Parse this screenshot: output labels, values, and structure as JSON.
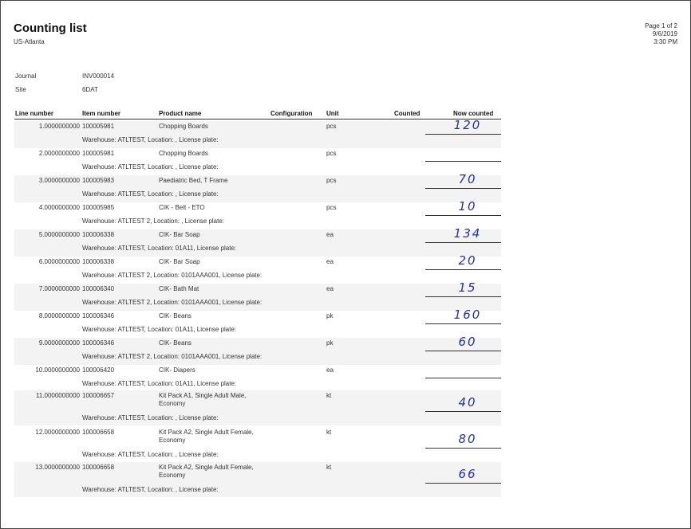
{
  "header": {
    "title": "Counting list",
    "subtitle": "US-Atlanta",
    "page": "Page 1 of 2",
    "date": "9/6/2019",
    "time": "3:30 PM"
  },
  "meta": {
    "journal_label": "Journal",
    "journal_value": "INV000014",
    "site_label": "Site",
    "site_value": "6DAT"
  },
  "columns": {
    "line_number": "Line number",
    "item_number": "Item number",
    "product_name": "Product name",
    "configuration": "Configuration",
    "unit": "Unit",
    "counted": "Counted",
    "now_counted": "Now counted"
  },
  "rows": [
    {
      "line": "1.0000000000",
      "item": "100005981",
      "product": "Chopping Boards",
      "unit": "pcs",
      "warehouse": "Warehouse: ATLTEST, Location: , License plate:",
      "handwritten": "120"
    },
    {
      "line": "2.0000000000",
      "item": "100005981",
      "product": "Chopping Boards",
      "unit": "pcs",
      "warehouse": "Warehouse: ATLTEST, Location: , License plate:",
      "handwritten": ""
    },
    {
      "line": "3.0000000000",
      "item": "100005983",
      "product": "Paediatric Bed, T Frame",
      "unit": "pcs",
      "warehouse": "Warehouse: ATLTEST, Location: , License plate:",
      "handwritten": "70"
    },
    {
      "line": "4.0000000000",
      "item": "100005985",
      "product": "CIK - Belt - ETO",
      "unit": "pcs",
      "warehouse": "Warehouse: ATLTEST 2, Location: , License plate:",
      "handwritten": "10"
    },
    {
      "line": "5.0000000000",
      "item": "100006338",
      "product": "CIK- Bar Soap",
      "unit": "ea",
      "warehouse": "Warehouse: ATLTEST, Location: 01A11, License plate:",
      "handwritten": "134"
    },
    {
      "line": "6.0000000000",
      "item": "100006338",
      "product": "CIK- Bar Soap",
      "unit": "ea",
      "warehouse": "Warehouse: ATLTEST 2, Location: 0101AAA001, License plate:",
      "handwritten": "20"
    },
    {
      "line": "7.0000000000",
      "item": "100006340",
      "product": "CIK- Bath Mat",
      "unit": "ea",
      "warehouse": "Warehouse: ATLTEST 2, Location: 0101AAA001, License plate:",
      "handwritten": "15"
    },
    {
      "line": "8.0000000000",
      "item": "100006346",
      "product": "CIK- Beans",
      "unit": "pk",
      "warehouse": "Warehouse: ATLTEST, Location: 01A11, License plate:",
      "handwritten": "160"
    },
    {
      "line": "9.0000000000",
      "item": "100006346",
      "product": "CIK- Beans",
      "unit": "pk",
      "warehouse": "Warehouse: ATLTEST 2, Location: 0101AAA001, License plate:",
      "handwritten": "60"
    },
    {
      "line": "10.0000000000",
      "item": "100006420",
      "product": "CIK- Diapers",
      "unit": "ea",
      "warehouse": "Warehouse: ATLTEST, Location: 01A11, License plate:",
      "handwritten": ""
    },
    {
      "line": "11.0000000000",
      "item": "100006657",
      "product": "Kit Pack A1, Single  Adult Male,",
      "product2": "Economy",
      "unit": "kt",
      "warehouse": "Warehouse: ATLTEST, Location: , License plate:",
      "handwritten": "40"
    },
    {
      "line": "12.0000000000",
      "item": "100006658",
      "product": "Kit Pack A2, Single  Adult Female,",
      "product2": "Economy",
      "unit": "kt",
      "warehouse": "Warehouse: ATLTEST, Location: , License plate:",
      "handwritten": "80"
    },
    {
      "line": "13.0000000000",
      "item": "100006658",
      "product": "Kit Pack A2, Single  Adult Female,",
      "product2": "Economy",
      "unit": "kt",
      "warehouse": "Warehouse: ATLTEST, Location: , License plate:",
      "handwritten": "66"
    }
  ]
}
